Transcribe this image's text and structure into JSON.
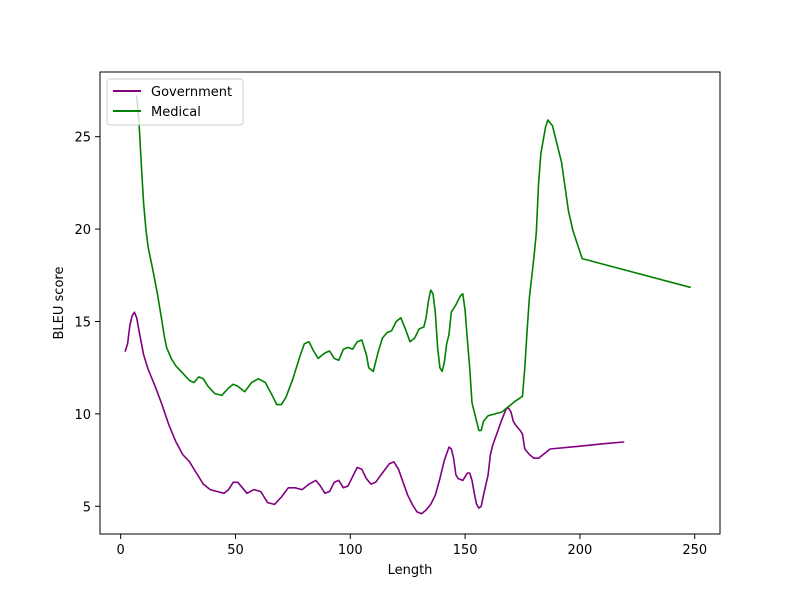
{
  "chart_data": {
    "type": "line",
    "title": "",
    "xlabel": "Length",
    "ylabel": "BLEU score",
    "xlim": [
      -9,
      261
    ],
    "ylim": [
      3.5,
      28.5
    ],
    "xticks": [
      0,
      50,
      100,
      150,
      200,
      250
    ],
    "yticks": [
      5,
      10,
      15,
      20,
      25
    ],
    "grid": false,
    "legend_position": "top-left",
    "series": [
      {
        "name": "Government",
        "color": "#800080",
        "points": [
          [
            2,
            13.4
          ],
          [
            3,
            13.8
          ],
          [
            4,
            14.8
          ],
          [
            5,
            15.3
          ],
          [
            6,
            15.5
          ],
          [
            7,
            15.2
          ],
          [
            8,
            14.5
          ],
          [
            10,
            13.2
          ],
          [
            12,
            12.4
          ],
          [
            15,
            11.5
          ],
          [
            18,
            10.5
          ],
          [
            21,
            9.4
          ],
          [
            24,
            8.5
          ],
          [
            27,
            7.8
          ],
          [
            30,
            7.4
          ],
          [
            33,
            6.8
          ],
          [
            36,
            6.2
          ],
          [
            39,
            5.9
          ],
          [
            42,
            5.8
          ],
          [
            45,
            5.7
          ],
          [
            47,
            5.9
          ],
          [
            49,
            6.3
          ],
          [
            51,
            6.3
          ],
          [
            53,
            6.0
          ],
          [
            55,
            5.7
          ],
          [
            58,
            5.9
          ],
          [
            61,
            5.8
          ],
          [
            64,
            5.2
          ],
          [
            67,
            5.1
          ],
          [
            70,
            5.5
          ],
          [
            73,
            6.0
          ],
          [
            76,
            6.0
          ],
          [
            79,
            5.9
          ],
          [
            82,
            6.2
          ],
          [
            85,
            6.4
          ],
          [
            87,
            6.1
          ],
          [
            89,
            5.7
          ],
          [
            91,
            5.8
          ],
          [
            93,
            6.3
          ],
          [
            95,
            6.4
          ],
          [
            97,
            6.0
          ],
          [
            99,
            6.1
          ],
          [
            101,
            6.6
          ],
          [
            103,
            7.1
          ],
          [
            105,
            7.0
          ],
          [
            107,
            6.5
          ],
          [
            109,
            6.2
          ],
          [
            111,
            6.3
          ],
          [
            114,
            6.8
          ],
          [
            117,
            7.3
          ],
          [
            119,
            7.4
          ],
          [
            121,
            7.0
          ],
          [
            123,
            6.3
          ],
          [
            125,
            5.6
          ],
          [
            127,
            5.1
          ],
          [
            129,
            4.7
          ],
          [
            131,
            4.6
          ],
          [
            133,
            4.8
          ],
          [
            135,
            5.1
          ],
          [
            137,
            5.6
          ],
          [
            139,
            6.5
          ],
          [
            141,
            7.5
          ],
          [
            143,
            8.2
          ],
          [
            144,
            8.1
          ],
          [
            145,
            7.6
          ],
          [
            146,
            6.7
          ],
          [
            147,
            6.5
          ],
          [
            149,
            6.4
          ],
          [
            151,
            6.8
          ],
          [
            152,
            6.8
          ],
          [
            153,
            6.4
          ],
          [
            154,
            5.7
          ],
          [
            155,
            5.1
          ],
          [
            156,
            4.9
          ],
          [
            157,
            5.0
          ],
          [
            158,
            5.6
          ],
          [
            160,
            6.7
          ],
          [
            161,
            7.8
          ],
          [
            162,
            8.3
          ],
          [
            164,
            9.0
          ],
          [
            166,
            9.7
          ],
          [
            168,
            10.3
          ],
          [
            169,
            10.3
          ],
          [
            170,
            10.1
          ],
          [
            171,
            9.6
          ],
          [
            172,
            9.4
          ],
          [
            174,
            9.1
          ],
          [
            175,
            8.9
          ],
          [
            176,
            8.1
          ],
          [
            178,
            7.8
          ],
          [
            180,
            7.6
          ],
          [
            182,
            7.6
          ],
          [
            184,
            7.8
          ],
          [
            185,
            7.9
          ],
          [
            187,
            8.1
          ],
          [
            200,
            8.25
          ],
          [
            210,
            8.38
          ],
          [
            219,
            8.48
          ]
        ]
      },
      {
        "name": "Medical",
        "color": "#008000",
        "points": [
          [
            7,
            27.2
          ],
          [
            8,
            25.8
          ],
          [
            9,
            23.5
          ],
          [
            10,
            21.4
          ],
          [
            11,
            20.0
          ],
          [
            12,
            19.0
          ],
          [
            14,
            17.8
          ],
          [
            16,
            16.5
          ],
          [
            18,
            15.0
          ],
          [
            19,
            14.2
          ],
          [
            20,
            13.6
          ],
          [
            22,
            13.0
          ],
          [
            24,
            12.6
          ],
          [
            27,
            12.2
          ],
          [
            30,
            11.8
          ],
          [
            32,
            11.7
          ],
          [
            34,
            12.0
          ],
          [
            36,
            11.9
          ],
          [
            38,
            11.5
          ],
          [
            41,
            11.1
          ],
          [
            44,
            11.0
          ],
          [
            47,
            11.4
          ],
          [
            49,
            11.6
          ],
          [
            51,
            11.5
          ],
          [
            54,
            11.2
          ],
          [
            57,
            11.7
          ],
          [
            60,
            11.9
          ],
          [
            63,
            11.7
          ],
          [
            66,
            11.0
          ],
          [
            68,
            10.5
          ],
          [
            70,
            10.5
          ],
          [
            72,
            10.9
          ],
          [
            75,
            11.9
          ],
          [
            78,
            13.1
          ],
          [
            80,
            13.8
          ],
          [
            82,
            13.9
          ],
          [
            84,
            13.4
          ],
          [
            86,
            13.0
          ],
          [
            89,
            13.3
          ],
          [
            91,
            13.4
          ],
          [
            93,
            13.0
          ],
          [
            95,
            12.9
          ],
          [
            97,
            13.5
          ],
          [
            99,
            13.6
          ],
          [
            101,
            13.5
          ],
          [
            103,
            13.9
          ],
          [
            105,
            14.0
          ],
          [
            107,
            13.2
          ],
          [
            108,
            12.5
          ],
          [
            110,
            12.3
          ],
          [
            112,
            13.3
          ],
          [
            114,
            14.1
          ],
          [
            116,
            14.4
          ],
          [
            118,
            14.5
          ],
          [
            120,
            15.0
          ],
          [
            122,
            15.2
          ],
          [
            124,
            14.6
          ],
          [
            126,
            13.9
          ],
          [
            128,
            14.1
          ],
          [
            130,
            14.6
          ],
          [
            132,
            14.7
          ],
          [
            133,
            15.2
          ],
          [
            134,
            16.1
          ],
          [
            135,
            16.7
          ],
          [
            136,
            16.5
          ],
          [
            137,
            15.5
          ],
          [
            138,
            13.6
          ],
          [
            139,
            12.5
          ],
          [
            140,
            12.3
          ],
          [
            141,
            12.8
          ],
          [
            142,
            13.8
          ],
          [
            143,
            14.3
          ],
          [
            144,
            15.5
          ],
          [
            146,
            15.9
          ],
          [
            148,
            16.4
          ],
          [
            149,
            16.5
          ],
          [
            150,
            15.6
          ],
          [
            151,
            14.0
          ],
          [
            152,
            12.5
          ],
          [
            153,
            10.6
          ],
          [
            155,
            9.6
          ],
          [
            156,
            9.1
          ],
          [
            157,
            9.1
          ],
          [
            158,
            9.6
          ],
          [
            160,
            9.9
          ],
          [
            163,
            10.0
          ],
          [
            166,
            10.1
          ],
          [
            168,
            10.3
          ],
          [
            172,
            10.7
          ],
          [
            175,
            10.95
          ],
          [
            176,
            12.5
          ],
          [
            177,
            14.5
          ],
          [
            178,
            16.3
          ],
          [
            180,
            18.5
          ],
          [
            181,
            19.8
          ],
          [
            182,
            22.5
          ],
          [
            183,
            24.1
          ],
          [
            184,
            24.8
          ],
          [
            185,
            25.5
          ],
          [
            186,
            25.9
          ],
          [
            188,
            25.6
          ],
          [
            190,
            24.6
          ],
          [
            192,
            23.6
          ],
          [
            195,
            21.0
          ],
          [
            197,
            19.9
          ],
          [
            201,
            18.4
          ],
          [
            248,
            16.85
          ]
        ]
      }
    ]
  }
}
